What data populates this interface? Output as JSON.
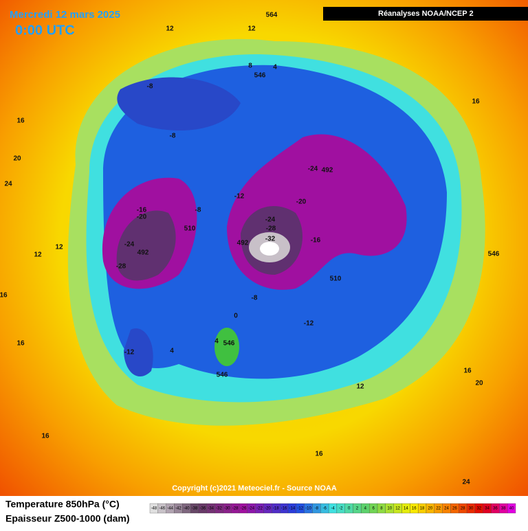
{
  "header": {
    "date": "Mercredi 12 mars 2025",
    "time": "0:00 UTC",
    "source": "Réanalyses NOAA/NCEP 2"
  },
  "footer": {
    "copyright": "Copyright (c)2021 Meteociel.fr - Source NOAA",
    "line1": "Temperature 850hPa (°C)",
    "line2": "Epaisseur Z500-1000 (dam)"
  },
  "legend": {
    "values": [
      -48,
      -46,
      -44,
      -42,
      -40,
      -38,
      -36,
      -34,
      -32,
      -30,
      -28,
      -26,
      -24,
      -22,
      -20,
      -18,
      -16,
      -14,
      -12,
      -10,
      -8,
      -6,
      -4,
      -2,
      0,
      2,
      4,
      6,
      8,
      10,
      12,
      14,
      16,
      18,
      20,
      22,
      24,
      26,
      28,
      30,
      32,
      34,
      36,
      38,
      40
    ]
  },
  "map_labels": [
    12,
    12,
    564,
    8,
    4,
    546,
    -8,
    -8,
    16,
    20,
    24,
    -16,
    -20,
    -8,
    -12,
    510,
    -24,
    492,
    -28,
    12,
    12,
    -24,
    492,
    -20,
    -24,
    -28,
    -32,
    492,
    -16,
    510,
    16,
    546,
    16,
    -8,
    0,
    -12,
    16,
    4,
    546,
    -12,
    4,
    546,
    12,
    20,
    16,
    16,
    16,
    24
  ]
}
